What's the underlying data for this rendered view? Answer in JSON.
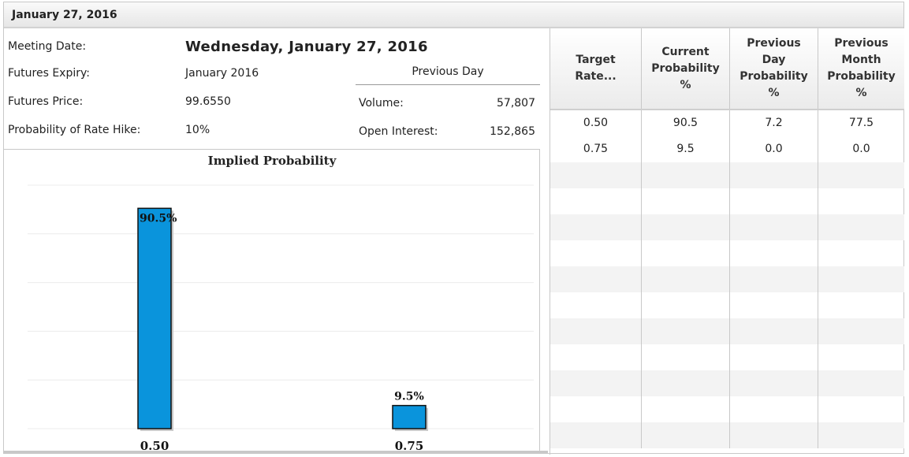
{
  "header": {
    "title": "January 27, 2016"
  },
  "info": {
    "meeting_date_label": "Meeting Date:",
    "meeting_date_value": "Wednesday, January 27, 2016",
    "futures_expiry_label": "Futures Expiry:",
    "futures_expiry_value": "January 2016",
    "futures_price_label": "Futures Price:",
    "futures_price_value": "99.6550",
    "prob_hike_label": "Probability of Rate Hike:",
    "prob_hike_value": "10%"
  },
  "previous_day": {
    "title": "Previous Day",
    "volume_label": "Volume:",
    "volume_value": "57,807",
    "open_interest_label": "Open Interest:",
    "open_interest_value": "152,865"
  },
  "chart_data": {
    "type": "bar",
    "title": "Implied Probability",
    "categories": [
      "0.50",
      "0.75"
    ],
    "values": [
      90.5,
      9.5
    ],
    "data_labels": [
      "90.5%",
      "9.5%"
    ],
    "ylim": [
      0,
      100
    ],
    "grid": true,
    "bar_color": "#0a94dc"
  },
  "table": {
    "headers": [
      [
        "Target",
        "Rate..."
      ],
      [
        "Current",
        "Probability",
        "%"
      ],
      [
        "Previous",
        "Day",
        "Probability",
        "%"
      ],
      [
        "Previous",
        "Month",
        "Probability",
        "%"
      ]
    ],
    "rows": [
      [
        "0.50",
        "90.5",
        "7.2",
        "77.5"
      ],
      [
        "0.75",
        "9.5",
        "0.0",
        "0.0"
      ]
    ]
  }
}
